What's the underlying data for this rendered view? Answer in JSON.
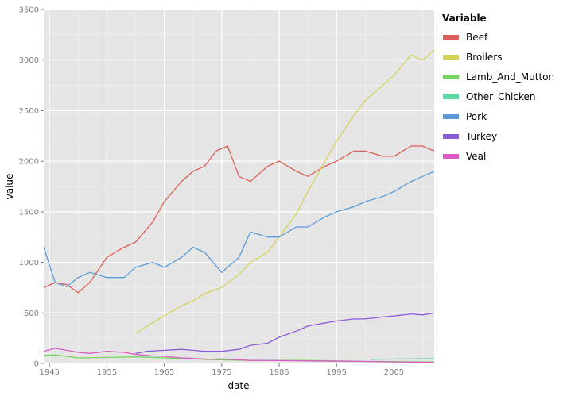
{
  "chart_data": {
    "type": "line",
    "xlabel": "date",
    "ylabel": "value",
    "xlim": [
      1944,
      2012
    ],
    "ylim": [
      0,
      3500
    ],
    "x_ticks": [
      1945,
      1955,
      1965,
      1975,
      1985,
      1995,
      2005
    ],
    "y_ticks": [
      0,
      500,
      1000,
      1500,
      2000,
      2500,
      3000,
      3500
    ],
    "x_tick_labels": [
      "1945",
      "1955",
      "1965",
      "1975",
      "1985",
      "1995",
      "2005"
    ],
    "y_tick_labels": [
      "0",
      "500",
      "1000",
      "1500",
      "2000",
      "2500",
      "3000",
      "3500"
    ],
    "grid": true,
    "legend": {
      "title": "Variable",
      "position": "right"
    },
    "series": [
      {
        "name": "Beef",
        "color": "#db5f57",
        "x": [
          1944,
          1946,
          1948,
          1950,
          1952,
          1955,
          1958,
          1960,
          1963,
          1965,
          1968,
          1970,
          1972,
          1974,
          1976,
          1978,
          1980,
          1983,
          1985,
          1988,
          1990,
          1993,
          1995,
          1998,
          2000,
          2003,
          2005,
          2008,
          2010,
          2012
        ],
        "y": [
          750,
          800,
          780,
          700,
          800,
          1050,
          1150,
          1200,
          1400,
          1600,
          1800,
          1900,
          1950,
          2100,
          2150,
          1850,
          1800,
          1950,
          2000,
          1900,
          1850,
          1950,
          2000,
          2100,
          2100,
          2050,
          2050,
          2150,
          2150,
          2100
        ]
      },
      {
        "name": "Broilers",
        "color": "#d3d35a",
        "x": [
          1960,
          1962,
          1965,
          1968,
          1970,
          1972,
          1975,
          1978,
          1980,
          1983,
          1985,
          1988,
          1990,
          1993,
          1995,
          1998,
          2000,
          2003,
          2005,
          2008,
          2010,
          2012
        ],
        "y": [
          300,
          370,
          470,
          570,
          620,
          690,
          750,
          880,
          1000,
          1100,
          1250,
          1480,
          1700,
          2000,
          2200,
          2450,
          2600,
          2750,
          2850,
          3050,
          3000,
          3100
        ]
      },
      {
        "name": "Lamb_And_Mutton",
        "color": "#74d65f",
        "x": [
          1944,
          1946,
          1948,
          1950,
          1955,
          1960,
          1965,
          1970,
          1975,
          1980,
          1985,
          1990,
          1995,
          2000,
          2005,
          2010,
          2012
        ],
        "y": [
          80,
          85,
          70,
          55,
          60,
          65,
          55,
          45,
          35,
          30,
          30,
          30,
          25,
          20,
          18,
          15,
          14
        ]
      },
      {
        "name": "Other_Chicken",
        "color": "#5cd8a4",
        "x": [
          2001,
          2003,
          2005,
          2007,
          2009,
          2011,
          2012
        ],
        "y": [
          40,
          42,
          44,
          45,
          46,
          47,
          48
        ]
      },
      {
        "name": "Pork",
        "color": "#5c9bd8",
        "x": [
          1944,
          1946,
          1948,
          1950,
          1952,
          1955,
          1958,
          1960,
          1963,
          1965,
          1968,
          1970,
          1972,
          1975,
          1978,
          1980,
          1983,
          1985,
          1988,
          1990,
          1993,
          1995,
          1998,
          2000,
          2003,
          2005,
          2008,
          2010,
          2012
        ],
        "y": [
          1150,
          800,
          760,
          850,
          900,
          850,
          850,
          950,
          1000,
          950,
          1050,
          1150,
          1100,
          900,
          1050,
          1300,
          1250,
          1250,
          1350,
          1350,
          1450,
          1500,
          1550,
          1600,
          1650,
          1700,
          1800,
          1850,
          1900
        ]
      },
      {
        "name": "Turkey",
        "color": "#8a5cd8",
        "x": [
          1960,
          1962,
          1965,
          1968,
          1970,
          1972,
          1975,
          1978,
          1980,
          1983,
          1985,
          1988,
          1990,
          1993,
          1995,
          1998,
          2000,
          2003,
          2005,
          2008,
          2010,
          2012
        ],
        "y": [
          100,
          120,
          130,
          140,
          130,
          120,
          120,
          140,
          180,
          200,
          260,
          320,
          370,
          400,
          420,
          440,
          440,
          460,
          470,
          490,
          480,
          500
        ]
      },
      {
        "name": "Veal",
        "color": "#d85cc3",
        "x": [
          1944,
          1946,
          1948,
          1950,
          1952,
          1955,
          1958,
          1960,
          1963,
          1965,
          1968,
          1970,
          1973,
          1975,
          1978,
          1980,
          1985,
          1990,
          1995,
          2000,
          2005,
          2010,
          2012
        ],
        "y": [
          120,
          150,
          130,
          110,
          100,
          120,
          110,
          90,
          75,
          70,
          55,
          50,
          40,
          45,
          35,
          30,
          28,
          25,
          22,
          20,
          15,
          12,
          11
        ]
      }
    ]
  }
}
